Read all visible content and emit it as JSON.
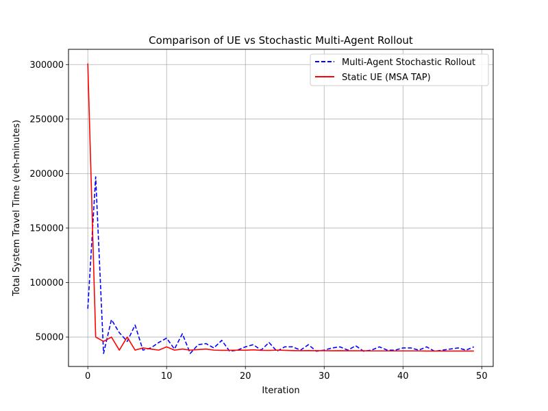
{
  "chart_data": {
    "type": "line",
    "title": "Comparison of UE vs Stochastic Multi-Agent Rollout",
    "xlabel": "Iteration",
    "ylabel": "Total System Travel Time (veh-minutes)",
    "xlim": [
      -2.45,
      51.45
    ],
    "ylim": [
      23000,
      314000
    ],
    "xticks": [
      0,
      10,
      20,
      30,
      40,
      50
    ],
    "yticks": [
      50000,
      100000,
      150000,
      200000,
      250000,
      300000
    ],
    "xtick_labels": [
      "0",
      "10",
      "20",
      "30",
      "40",
      "50"
    ],
    "ytick_labels": [
      "50000",
      "100000",
      "150000",
      "200000",
      "250000",
      "300000"
    ],
    "grid": true,
    "legend_position": "top-right",
    "series": [
      {
        "name": "Multi-Agent Stochastic Rollout",
        "color": "#0000ff",
        "style": "dashed",
        "x": [
          0,
          1,
          2,
          3,
          4,
          5,
          6,
          7,
          8,
          9,
          10,
          11,
          12,
          13,
          14,
          15,
          16,
          17,
          18,
          19,
          20,
          21,
          22,
          23,
          24,
          25,
          26,
          27,
          28,
          29,
          30,
          31,
          32,
          33,
          34,
          35,
          36,
          37,
          38,
          39,
          40,
          41,
          42,
          43,
          44,
          45,
          46,
          47,
          48,
          49
        ],
        "values": [
          76000,
          197000,
          35000,
          66000,
          54000,
          46000,
          61000,
          38000,
          40000,
          45000,
          49000,
          39000,
          53000,
          35000,
          43000,
          44000,
          40000,
          47000,
          37000,
          38000,
          41000,
          43000,
          38000,
          45000,
          37000,
          41000,
          41000,
          38000,
          43000,
          37000,
          38000,
          40000,
          41000,
          38000,
          42000,
          37000,
          38000,
          41000,
          38000,
          38000,
          40000,
          40000,
          38000,
          41000,
          37000,
          38000,
          39000,
          40000,
          38000,
          41000
        ]
      },
      {
        "name": "Static UE (MSA TAP)",
        "color": "#ff0000",
        "style": "solid",
        "x": [
          0,
          1,
          2,
          3,
          4,
          5,
          6,
          7,
          8,
          9,
          10,
          11,
          12,
          13,
          14,
          15,
          16,
          17,
          18,
          19,
          20,
          21,
          22,
          23,
          24,
          25,
          26,
          27,
          28,
          29,
          30,
          31,
          32,
          33,
          34,
          35,
          36,
          37,
          38,
          39,
          40,
          41,
          42,
          43,
          44,
          45,
          46,
          47,
          48,
          49
        ],
        "values": [
          301000,
          50000,
          46000,
          50000,
          38000,
          50000,
          38000,
          40000,
          39000,
          38000,
          41000,
          38000,
          39000,
          38000,
          38500,
          39000,
          38000,
          37800,
          37800,
          38000,
          37900,
          38300,
          37800,
          37700,
          38000,
          37800,
          37600,
          37500,
          37600,
          37500,
          37500,
          37400,
          37500,
          37400,
          37400,
          37400,
          37300,
          37300,
          37300,
          37300,
          37300,
          37300,
          37300,
          37200,
          37200,
          37200,
          37200,
          37200,
          37200,
          37200
        ]
      }
    ]
  }
}
